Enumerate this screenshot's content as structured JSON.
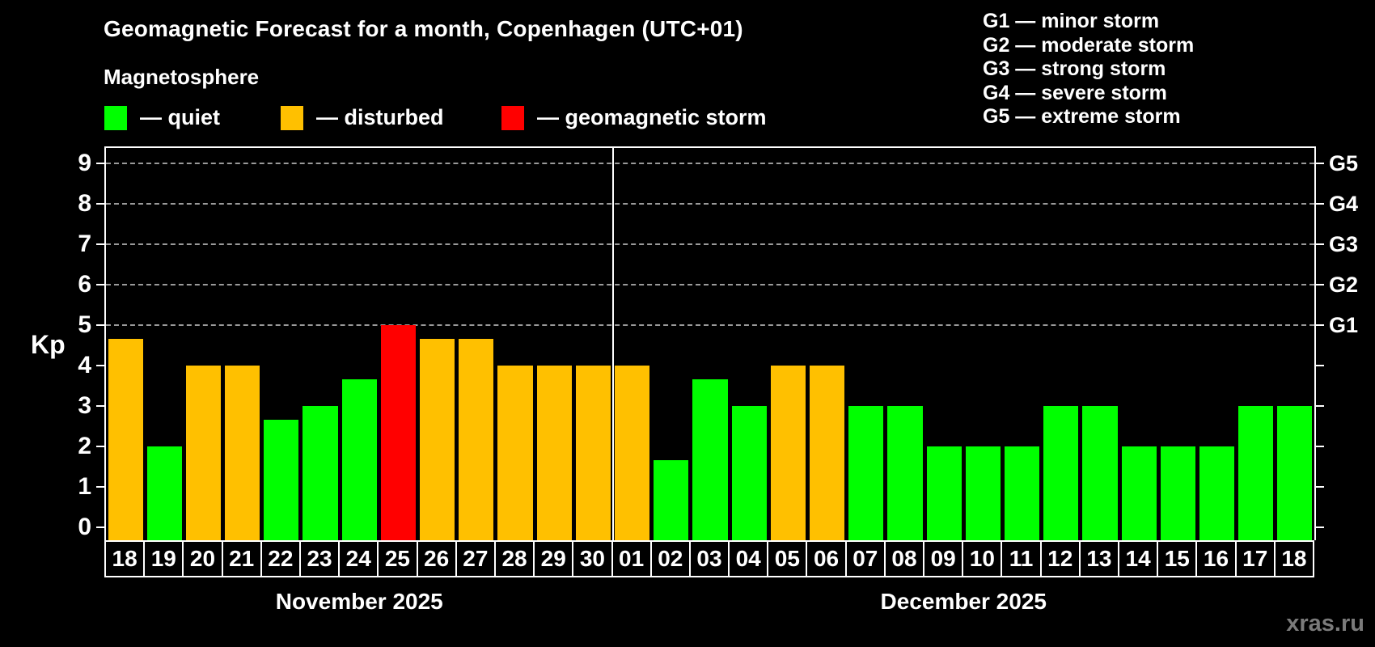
{
  "title": "Geomagnetic Forecast for a month, Copenhagen (UTC+01)",
  "subtitle": "Magnetosphere",
  "legend": {
    "items": [
      {
        "key": "quiet",
        "label": "— quiet",
        "color": "#00ff00"
      },
      {
        "key": "disturbed",
        "label": "— disturbed",
        "color": "#ffc000"
      },
      {
        "key": "storm",
        "label": "— geomagnetic storm",
        "color": "#ff0000"
      }
    ]
  },
  "g_legend": {
    "items": [
      {
        "code": "G1",
        "label": "G1 — minor storm"
      },
      {
        "code": "G2",
        "label": "G2 — moderate storm"
      },
      {
        "code": "G3",
        "label": "G3 — strong storm"
      },
      {
        "code": "G4",
        "label": "G4 — severe storm"
      },
      {
        "code": "G5",
        "label": "G5 — extreme storm"
      }
    ]
  },
  "watermark": "xras.ru",
  "chart_data": {
    "type": "bar",
    "title": "Geomagnetic Forecast for a month, Copenhagen (UTC+01)",
    "xlabel": "",
    "ylabel": "Kp",
    "ylim": [
      0,
      9.7
    ],
    "y_ticks": [
      0,
      1,
      2,
      3,
      4,
      5,
      6,
      7,
      8,
      9
    ],
    "gridlines_kp": [
      5,
      6,
      7,
      8,
      9
    ],
    "grid": "horizontal dashed at storm levels only",
    "legend_position": "top-left",
    "right_axis_labels": [
      {
        "label": "G1",
        "kp": 5
      },
      {
        "label": "G2",
        "kp": 6
      },
      {
        "label": "G3",
        "kp": 7
      },
      {
        "label": "G4",
        "kp": 8
      },
      {
        "label": "G5",
        "kp": 9
      }
    ],
    "colors": {
      "quiet": "#00ff00",
      "disturbed": "#ffc000",
      "storm": "#ff0000"
    },
    "months": [
      {
        "label": "November 2025",
        "days": [
          {
            "date": "18",
            "kp": 4.67,
            "status": "disturbed"
          },
          {
            "date": "19",
            "kp": 2,
            "status": "quiet"
          },
          {
            "date": "20",
            "kp": 4,
            "status": "disturbed"
          },
          {
            "date": "21",
            "kp": 4,
            "status": "disturbed"
          },
          {
            "date": "22",
            "kp": 2.67,
            "status": "quiet"
          },
          {
            "date": "23",
            "kp": 3,
            "status": "quiet"
          },
          {
            "date": "24",
            "kp": 3.67,
            "status": "quiet"
          },
          {
            "date": "25",
            "kp": 5,
            "status": "storm"
          },
          {
            "date": "26",
            "kp": 4.67,
            "status": "disturbed"
          },
          {
            "date": "27",
            "kp": 4.67,
            "status": "disturbed"
          },
          {
            "date": "28",
            "kp": 4,
            "status": "disturbed"
          },
          {
            "date": "29",
            "kp": 4,
            "status": "disturbed"
          },
          {
            "date": "30",
            "kp": 4,
            "status": "disturbed"
          }
        ]
      },
      {
        "label": "December 2025",
        "days": [
          {
            "date": "01",
            "kp": 4,
            "status": "disturbed"
          },
          {
            "date": "02",
            "kp": 1.67,
            "status": "quiet"
          },
          {
            "date": "03",
            "kp": 3.67,
            "status": "quiet"
          },
          {
            "date": "04",
            "kp": 3,
            "status": "quiet"
          },
          {
            "date": "05",
            "kp": 4,
            "status": "disturbed"
          },
          {
            "date": "06",
            "kp": 4,
            "status": "disturbed"
          },
          {
            "date": "07",
            "kp": 3,
            "status": "quiet"
          },
          {
            "date": "08",
            "kp": 3,
            "status": "quiet"
          },
          {
            "date": "09",
            "kp": 2,
            "status": "quiet"
          },
          {
            "date": "10",
            "kp": 2,
            "status": "quiet"
          },
          {
            "date": "11",
            "kp": 2,
            "status": "quiet"
          },
          {
            "date": "12",
            "kp": 3,
            "status": "quiet"
          },
          {
            "date": "13",
            "kp": 3,
            "status": "quiet"
          },
          {
            "date": "14",
            "kp": 2,
            "status": "quiet"
          },
          {
            "date": "15",
            "kp": 2,
            "status": "quiet"
          },
          {
            "date": "16",
            "kp": 2,
            "status": "quiet"
          },
          {
            "date": "17",
            "kp": 3,
            "status": "quiet"
          },
          {
            "date": "18",
            "kp": 3,
            "status": "quiet"
          }
        ]
      }
    ]
  }
}
